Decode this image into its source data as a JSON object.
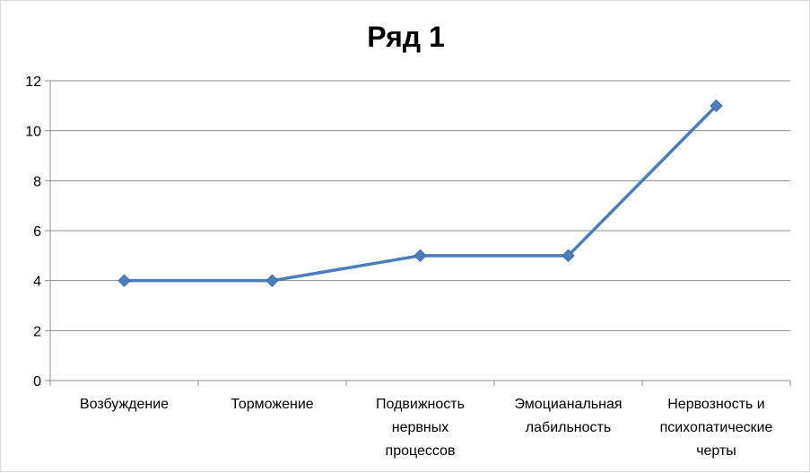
{
  "chart_data": {
    "type": "line",
    "title": "Ряд 1",
    "categories": [
      "Возбуждение",
      "Торможение",
      "Подвижность нервных процессов",
      "Эмоцианальная лабильность",
      "Нервозность и психопатические черты"
    ],
    "category_lines": [
      [
        "Возбуждение"
      ],
      [
        "Торможение"
      ],
      [
        "Подвижность",
        "нервных",
        "процессов"
      ],
      [
        "Эмоцианальная",
        "лабильность"
      ],
      [
        "Нервозность и",
        "психопатические",
        "черты"
      ]
    ],
    "series": [
      {
        "values": [
          4,
          4,
          5,
          5,
          11
        ]
      }
    ],
    "ylim": [
      0,
      12
    ],
    "yticks": [
      0,
      2,
      4,
      6,
      8,
      10,
      12
    ],
    "grid": true,
    "legend": "none",
    "colors": {
      "line": "#4a7ebb",
      "marker": "#4a7ebb",
      "grid": "#8c8c8c",
      "axis": "#8c8c8c"
    }
  }
}
